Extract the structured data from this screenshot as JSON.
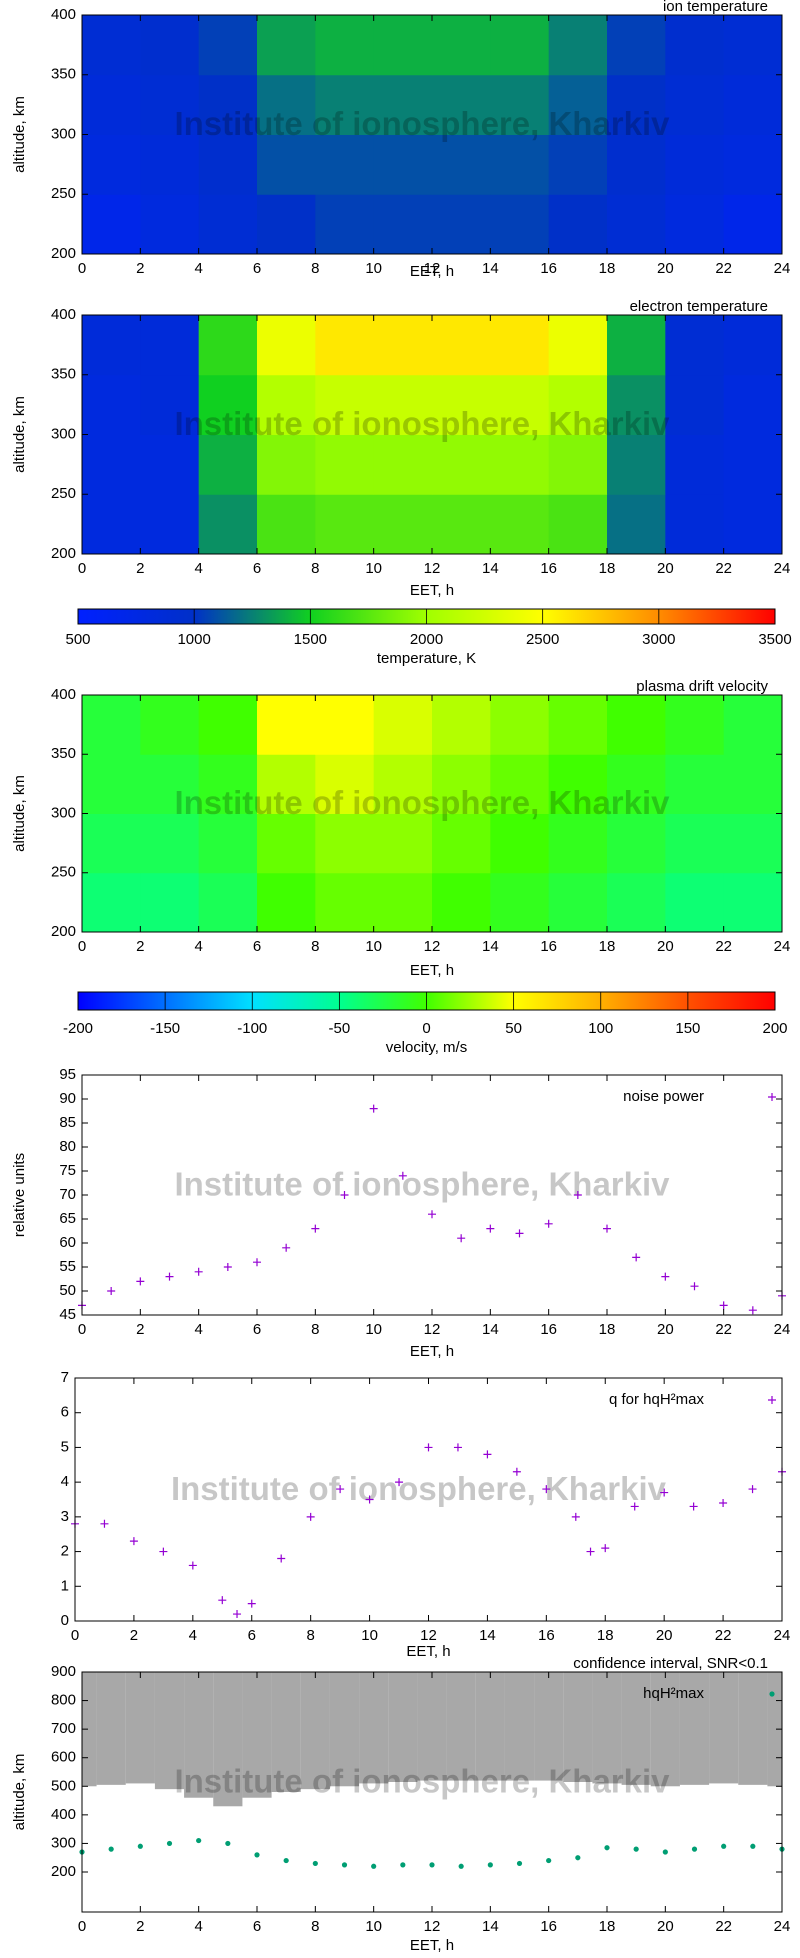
{
  "chart_data": [
    {
      "type": "heatmap",
      "title": "ion temperature",
      "watermark": "Institute of ionosphere, Kharkiv",
      "xlabel": "EET, h",
      "ylabel": "altitude, km",
      "xlim": [
        0,
        24
      ],
      "xticks": [
        0,
        2,
        4,
        6,
        8,
        10,
        12,
        14,
        16,
        18,
        20,
        22,
        24
      ],
      "ylim": [
        200,
        400
      ],
      "yticks": [
        200,
        250,
        300,
        350,
        400
      ],
      "xbins": [
        0,
        2,
        4,
        6,
        8,
        10,
        12,
        14,
        16,
        18,
        20,
        22,
        24
      ],
      "ybins": [
        200,
        250,
        300,
        350,
        400
      ],
      "values": [
        [
          700,
          800,
          900,
          1000,
          1050,
          1050,
          1050,
          1050,
          1000,
          900,
          800,
          700
        ],
        [
          800,
          850,
          950,
          1100,
          1100,
          1100,
          1100,
          1100,
          1050,
          950,
          850,
          800
        ],
        [
          850,
          900,
          1000,
          1200,
          1250,
          1250,
          1250,
          1250,
          1150,
          1000,
          900,
          850
        ],
        [
          900,
          950,
          1050,
          1350,
          1400,
          1400,
          1400,
          1400,
          1250,
          1050,
          950,
          900
        ]
      ]
    },
    {
      "type": "heatmap",
      "title": "electron temperature",
      "watermark": "Institute of ionosphere, Kharkiv",
      "xlabel": "EET, h",
      "ylabel": "altitude, km",
      "xlim": [
        0,
        24
      ],
      "xticks": [
        0,
        2,
        4,
        6,
        8,
        10,
        12,
        14,
        16,
        18,
        20,
        22,
        24
      ],
      "ylim": [
        200,
        400
      ],
      "yticks": [
        200,
        250,
        300,
        350,
        400
      ],
      "xbins": [
        0,
        2,
        4,
        6,
        8,
        10,
        12,
        14,
        16,
        18,
        20,
        22,
        24
      ],
      "ybins": [
        200,
        250,
        300,
        350,
        400
      ],
      "values": [
        [
          800,
          800,
          1300,
          1700,
          1750,
          1750,
          1750,
          1750,
          1700,
          1200,
          850,
          800
        ],
        [
          800,
          800,
          1400,
          1900,
          1950,
          1950,
          1950,
          1950,
          1900,
          1250,
          850,
          800
        ],
        [
          800,
          850,
          1500,
          2100,
          2200,
          2200,
          2200,
          2200,
          2100,
          1300,
          900,
          800
        ],
        [
          850,
          850,
          1600,
          2400,
          2600,
          2600,
          2600,
          2600,
          2400,
          1400,
          900,
          850
        ]
      ]
    },
    {
      "type": "colorbar",
      "xlabel": "temperature, K",
      "xlim": [
        500,
        3500
      ],
      "xticks": [
        500,
        1000,
        1500,
        2000,
        2500,
        3000,
        3500
      ],
      "colors": [
        "#0020ff",
        "#0030c8",
        "#10d020",
        "#a0ff00",
        "#ffff00",
        "#ff8c00",
        "#ff0000"
      ]
    },
    {
      "type": "heatmap",
      "title": "plasma drift velocity",
      "watermark": "Institute of ionosphere, Kharkiv",
      "xlabel": "EET, h",
      "ylabel": "altitude, km",
      "xlim": [
        0,
        24
      ],
      "xticks": [
        0,
        2,
        4,
        6,
        8,
        10,
        12,
        14,
        16,
        18,
        20,
        22,
        24
      ],
      "ylim": [
        200,
        400
      ],
      "yticks": [
        200,
        250,
        300,
        350,
        400
      ],
      "xbins": [
        0,
        2,
        4,
        6,
        8,
        10,
        12,
        14,
        16,
        18,
        20,
        22,
        24
      ],
      "ybins": [
        200,
        250,
        300,
        350,
        400
      ],
      "values": [
        [
          -40,
          -40,
          -30,
          0,
          10,
          10,
          0,
          -10,
          -20,
          -30,
          -40,
          -40
        ],
        [
          -30,
          -30,
          -20,
          10,
          20,
          20,
          10,
          0,
          -10,
          -20,
          -30,
          -30
        ],
        [
          -20,
          -20,
          -10,
          30,
          40,
          30,
          20,
          10,
          0,
          -10,
          -20,
          -20
        ],
        [
          -20,
          -10,
          0,
          50,
          50,
          40,
          30,
          20,
          10,
          0,
          -10,
          -20
        ]
      ]
    },
    {
      "type": "colorbar",
      "xlabel": "velocity, m/s",
      "xlim": [
        -200,
        200
      ],
      "xticks": [
        -200,
        -150,
        -100,
        -50,
        0,
        50,
        100,
        150,
        200
      ],
      "colors": [
        "#0000ff",
        "#0070ff",
        "#00e0ff",
        "#00ff90",
        "#40ff00",
        "#ffff00",
        "#ffb000",
        "#ff5000",
        "#ff0000"
      ]
    },
    {
      "type": "scatter",
      "watermark": "Institute of ionosphere, Kharkiv",
      "xlabel": "EET, h",
      "ylabel": "relative units",
      "xlim": [
        0,
        24
      ],
      "xticks": [
        0,
        2,
        4,
        6,
        8,
        10,
        12,
        14,
        16,
        18,
        20,
        22,
        24
      ],
      "ylim": [
        45,
        95
      ],
      "yticks": [
        45,
        50,
        55,
        60,
        65,
        70,
        75,
        80,
        85,
        90,
        95
      ],
      "x": [
        0,
        1,
        2,
        3,
        4,
        5,
        6,
        7,
        8,
        9,
        10,
        11,
        12,
        13,
        14,
        15,
        16,
        17,
        18,
        19,
        20,
        21,
        22,
        23,
        24
      ],
      "series": [
        {
          "name": "noise power",
          "color": "#9400d3",
          "marker": "+",
          "values": [
            47,
            50,
            52,
            53,
            54,
            55,
            56,
            59,
            63,
            70,
            88,
            74,
            66,
            61,
            63,
            62,
            64,
            70,
            63,
            57,
            53,
            51,
            47,
            46,
            49
          ]
        }
      ]
    },
    {
      "type": "scatter",
      "watermark": "Institute of ionosphere, Kharkiv",
      "xlabel": "EET, h",
      "xlim": [
        0,
        24
      ],
      "xticks": [
        0,
        2,
        4,
        6,
        8,
        10,
        12,
        14,
        16,
        18,
        20,
        22,
        24
      ],
      "ylim": [
        0,
        7
      ],
      "yticks": [
        0,
        1,
        2,
        3,
        4,
        5,
        6,
        7
      ],
      "x": [
        0,
        1,
        2,
        3,
        4,
        5,
        5.5,
        6,
        7,
        8,
        9,
        10,
        11,
        12,
        13,
        14,
        15,
        16,
        17,
        17.5,
        18,
        19,
        20,
        21,
        22,
        23,
        24
      ],
      "series": [
        {
          "name": "q for hqH²max",
          "color": "#9400d3",
          "marker": "+",
          "values": [
            2.8,
            2.8,
            2.3,
            2,
            1.6,
            0.6,
            0.2,
            0.5,
            1.8,
            3,
            3.8,
            3.5,
            4,
            5,
            5,
            4.8,
            4.3,
            3.8,
            3,
            2,
            2.1,
            3.3,
            3.7,
            3.3,
            3.4,
            3.8,
            4.3
          ]
        }
      ]
    },
    {
      "type": "scatter",
      "title": "confidence interval, SNR<0.1",
      "watermark": "Institute of ionosphere, Kharkiv",
      "xlabel": "EET, h",
      "ylabel": "altitude, km",
      "xlim": [
        0,
        24
      ],
      "xticks": [
        0,
        2,
        4,
        6,
        8,
        10,
        12,
        14,
        16,
        18,
        20,
        22,
        24
      ],
      "ylim": [
        60,
        900
      ],
      "yticks": [
        200,
        300,
        400,
        500,
        600,
        700,
        800,
        900
      ],
      "x": [
        0,
        1,
        2,
        3,
        4,
        5,
        6,
        7,
        8,
        9,
        10,
        11,
        12,
        13,
        14,
        15,
        16,
        17,
        18,
        19,
        20,
        21,
        22,
        23,
        24
      ],
      "series": [
        {
          "color": "#999999",
          "marker": "band",
          "lower": [
            500,
            505,
            510,
            490,
            460,
            430,
            460,
            480,
            490,
            500,
            510,
            515,
            520,
            520,
            520,
            520,
            520,
            515,
            510,
            505,
            500,
            505,
            510,
            505,
            500
          ],
          "upper": [
            900,
            900,
            900,
            900,
            900,
            900,
            900,
            900,
            900,
            900,
            900,
            900,
            900,
            900,
            900,
            900,
            900,
            900,
            900,
            900,
            900,
            900,
            900,
            900,
            900
          ]
        },
        {
          "name": "hqH²max",
          "color": "#009e73",
          "marker": "dot",
          "values": [
            270,
            280,
            290,
            300,
            310,
            300,
            260,
            240,
            230,
            225,
            220,
            225,
            225,
            220,
            225,
            230,
            240,
            250,
            285,
            280,
            270,
            280,
            290,
            290,
            280
          ]
        }
      ]
    }
  ]
}
